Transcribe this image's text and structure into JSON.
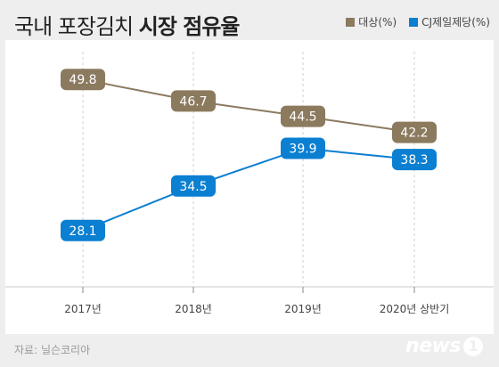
{
  "title": {
    "regular": "국내 포장김치",
    "bold": "시장 점유율"
  },
  "legend": [
    {
      "label": "대상(%)",
      "color": "#8c7a5f"
    },
    {
      "label": "CJ제일제당(%)",
      "color": "#0b7fd1"
    }
  ],
  "source": "자료: 닐슨코리아",
  "logo": {
    "text": "news",
    "mark": "1"
  },
  "chart_data": {
    "type": "line",
    "categories": [
      "2017년",
      "2018년",
      "2019년",
      "2020년 상반기"
    ],
    "series": [
      {
        "name": "대상(%)",
        "values": [
          49.8,
          46.7,
          44.5,
          42.2
        ],
        "color": "#8c7a5f"
      },
      {
        "name": "CJ제일제당(%)",
        "values": [
          28.1,
          34.5,
          39.9,
          38.3
        ],
        "color": "#0b7fd1"
      }
    ],
    "title": "국내 포장김치 시장 점유율",
    "xlabel": "",
    "ylabel": "",
    "ylim": [
      25,
      52
    ],
    "grid": "vertical-dashed",
    "data_labels": true,
    "legend_position": "top-right"
  }
}
